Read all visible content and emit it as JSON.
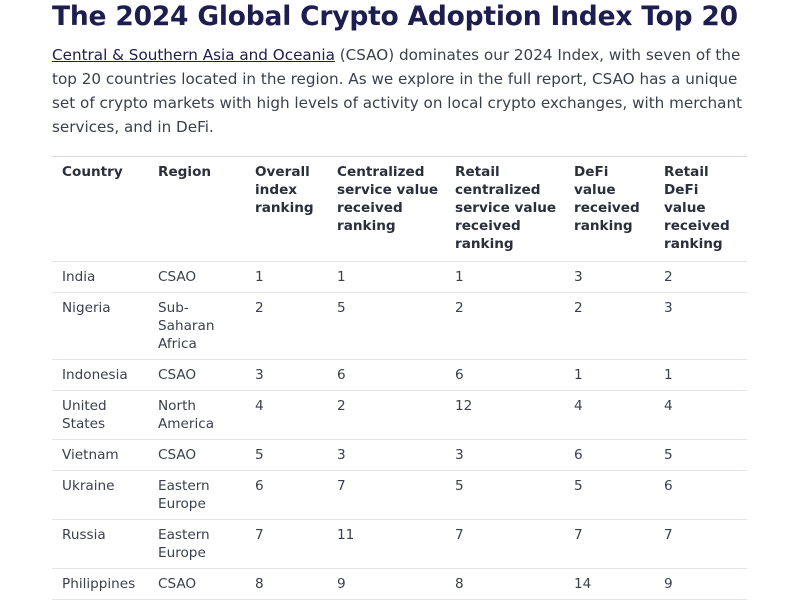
{
  "title": "The 2024 Global Crypto Adoption Index Top 20",
  "intro": {
    "link_text": "Central & Southern Asia and Oceania",
    "rest_text": " (CSAO) dominates our 2024 Index, with seven of the top 20 countries located in the region. As we explore in the full report, CSAO has a unique set of crypto markets with high levels of activity on local crypto exchanges, with merchant services, and in DeFi."
  },
  "table": {
    "headers": [
      "Country",
      "Region",
      "Overall index ranking",
      "Centralized service value received ranking",
      "Retail centralized service value received ranking",
      "DeFi value received ranking",
      "Retail DeFi value received ranking"
    ],
    "rows": [
      [
        "India",
        "CSAO",
        "1",
        "1",
        "1",
        "3",
        "2"
      ],
      [
        "Nigeria",
        "Sub-Saharan Africa",
        "2",
        "5",
        "2",
        "2",
        "3"
      ],
      [
        "Indonesia",
        "CSAO",
        "3",
        "6",
        "6",
        "1",
        "1"
      ],
      [
        "United States",
        "North America",
        "4",
        "2",
        "12",
        "4",
        "4"
      ],
      [
        "Vietnam",
        "CSAO",
        "5",
        "3",
        "3",
        "6",
        "5"
      ],
      [
        "Ukraine",
        "Eastern Europe",
        "6",
        "7",
        "5",
        "5",
        "6"
      ],
      [
        "Russia",
        "Eastern Europe",
        "7",
        "11",
        "7",
        "7",
        "7"
      ],
      [
        "Philippines",
        "CSAO",
        "8",
        "9",
        "8",
        "14",
        "9"
      ]
    ]
  }
}
